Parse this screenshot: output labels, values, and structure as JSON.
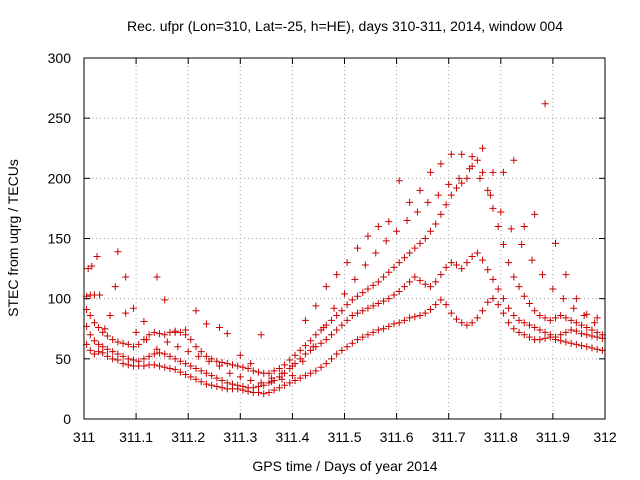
{
  "chart_data": {
    "type": "scatter",
    "title": "Rec. ufpr (Lon=310, Lat=-25, h=HE), days 310-311, 2014, window 004",
    "xlabel": "GPS time / Days of year 2014",
    "ylabel": "STEC from uqrg / TECUs",
    "xlim": [
      311,
      312
    ],
    "ylim": [
      0,
      300
    ],
    "xticks": [
      311,
      311.1,
      311.2,
      311.3,
      311.4,
      311.5,
      311.6,
      311.7,
      311.8,
      311.9,
      312
    ],
    "xtick_labels": [
      "311",
      "311.1",
      "311.2",
      "311.3",
      "311.4",
      "311.5",
      "311.6",
      "311.7",
      "311.8",
      "311.9",
      "312"
    ],
    "yticks": [
      0,
      50,
      100,
      150,
      200,
      250,
      300
    ],
    "ytick_labels": [
      "0",
      "50",
      "100",
      "150",
      "200",
      "250",
      "300"
    ],
    "grid": true,
    "marker": "+",
    "color": "#cc0000",
    "series": [
      {
        "name": "band1",
        "x": [
          311.005,
          311.012,
          311.02,
          311.028,
          311.036,
          311.045,
          311.055,
          311.065,
          311.075,
          311.085,
          311.095,
          311.105,
          311.115,
          311.125,
          311.135,
          311.145,
          311.155,
          311.165,
          311.175,
          311.185,
          311.195,
          311.205,
          311.215,
          311.225,
          311.235,
          311.245,
          311.255,
          311.265,
          311.275,
          311.285,
          311.295,
          311.305,
          311.315,
          311.325,
          311.335,
          311.345,
          311.355,
          311.365,
          311.375,
          311.385,
          311.395,
          311.405,
          311.415,
          311.425,
          311.435,
          311.445,
          311.455,
          311.465,
          311.475,
          311.485,
          311.495,
          311.505,
          311.515,
          311.525,
          311.535,
          311.545,
          311.555,
          311.565,
          311.575,
          311.585,
          311.595,
          311.605,
          311.615,
          311.625,
          311.635,
          311.645,
          311.655,
          311.665,
          311.675,
          311.685,
          311.695,
          311.705,
          311.715,
          311.725,
          311.735,
          311.745,
          311.755,
          311.765,
          311.775,
          311.785,
          311.795,
          311.805,
          311.815,
          311.825,
          311.835,
          311.845,
          311.855,
          311.865,
          311.875,
          311.885,
          311.895,
          311.905,
          311.915,
          311.925,
          311.935,
          311.945,
          311.955,
          311.965,
          311.975,
          311.985,
          311.995
        ],
        "y": [
          62,
          57,
          54,
          56,
          55,
          52,
          50,
          49,
          46,
          45,
          44,
          44,
          44,
          45,
          45,
          44,
          43,
          42,
          41,
          39,
          37,
          35,
          33,
          31,
          29,
          28,
          27,
          26,
          25,
          25,
          25,
          24,
          23,
          22,
          22,
          21,
          22,
          24,
          26,
          28,
          30,
          32,
          34,
          36,
          38,
          40,
          43,
          46,
          50,
          54,
          57,
          60,
          63,
          66,
          68,
          70,
          72,
          74,
          75,
          77,
          79,
          80,
          82,
          84,
          85,
          86,
          88,
          91,
          95,
          99,
          95,
          88,
          83,
          80,
          78,
          80,
          84,
          90,
          97,
          100,
          95,
          88,
          80,
          75,
          72,
          70,
          68,
          66,
          66,
          67,
          68,
          66,
          65,
          64,
          63,
          62,
          61,
          60,
          59,
          58,
          57
        ]
      },
      {
        "name": "band2",
        "x": [
          311.005,
          311.012,
          311.02,
          311.028,
          311.036,
          311.045,
          311.055,
          311.065,
          311.075,
          311.085,
          311.095,
          311.105,
          311.115,
          311.125,
          311.135,
          311.145,
          311.155,
          311.165,
          311.175,
          311.185,
          311.195,
          311.205,
          311.215,
          311.225,
          311.235,
          311.245,
          311.255,
          311.265,
          311.275,
          311.285,
          311.295,
          311.305,
          311.315,
          311.325,
          311.335,
          311.345,
          311.355,
          311.365,
          311.375,
          311.385,
          311.395,
          311.405,
          311.415,
          311.425,
          311.435,
          311.445,
          311.455,
          311.465,
          311.475,
          311.485,
          311.495,
          311.505,
          311.515,
          311.525,
          311.535,
          311.545,
          311.555,
          311.565,
          311.575,
          311.585,
          311.595,
          311.605,
          311.615,
          311.625,
          311.635,
          311.645,
          311.655,
          311.665,
          311.675,
          311.685,
          311.695,
          311.705,
          311.715,
          311.725,
          311.735,
          311.745,
          311.755,
          311.765,
          311.775,
          311.785,
          311.795,
          311.805,
          311.815,
          311.825,
          311.835,
          311.845,
          311.855,
          311.865,
          311.875,
          311.885,
          311.895,
          311.905,
          311.915,
          311.925,
          311.935,
          311.945,
          311.955,
          311.965,
          311.975,
          311.985,
          311.995
        ],
        "y": [
          77,
          70,
          65,
          62,
          60,
          58,
          56,
          54,
          52,
          50,
          49,
          48,
          50,
          52,
          54,
          55,
          54,
          52,
          50,
          48,
          46,
          44,
          42,
          40,
          38,
          36,
          34,
          32,
          30,
          29,
          28,
          27,
          26,
          26,
          27,
          28,
          30,
          32,
          35,
          38,
          42,
          46,
          50,
          54,
          57,
          60,
          63,
          66,
          70,
          74,
          78,
          82,
          86,
          88,
          90,
          92,
          94,
          96,
          98,
          100,
          103,
          106,
          110,
          114,
          118,
          115,
          112,
          110,
          114,
          120,
          126,
          130,
          128,
          125,
          130,
          135,
          138,
          132,
          124,
          116,
          108,
          100,
          92,
          86,
          82,
          80,
          78,
          76,
          74,
          72,
          70,
          68,
          70,
          72,
          74,
          73,
          71,
          70,
          69,
          68,
          67
        ]
      },
      {
        "name": "band3",
        "x": [
          311.005,
          311.012,
          311.02,
          311.028,
          311.036,
          311.045,
          311.055,
          311.065,
          311.075,
          311.085,
          311.095,
          311.105,
          311.115,
          311.125,
          311.135,
          311.145,
          311.155,
          311.165,
          311.175,
          311.185,
          311.195,
          311.205,
          311.215,
          311.225,
          311.235,
          311.245,
          311.255,
          311.265,
          311.275,
          311.285,
          311.295,
          311.305,
          311.315,
          311.325,
          311.335,
          311.345,
          311.355,
          311.365,
          311.375,
          311.385,
          311.395,
          311.405,
          311.415,
          311.425,
          311.435,
          311.445,
          311.455,
          311.465,
          311.475,
          311.485,
          311.495,
          311.505,
          311.515,
          311.525,
          311.535,
          311.545,
          311.555,
          311.565,
          311.575,
          311.585,
          311.595,
          311.605,
          311.615,
          311.625,
          311.635,
          311.645,
          311.655,
          311.665,
          311.675,
          311.685,
          311.695,
          311.705,
          311.715,
          311.725,
          311.735,
          311.745,
          311.755,
          311.765,
          311.775,
          311.785,
          311.795,
          311.805,
          311.815,
          311.825,
          311.835,
          311.845,
          311.855,
          311.865,
          311.875,
          311.885,
          311.895,
          311.905,
          311.915,
          311.925,
          311.935,
          311.945,
          311.955,
          311.965,
          311.975,
          311.985,
          311.995
        ],
        "y": [
          91,
          86,
          80,
          76,
          72,
          69,
          66,
          64,
          63,
          62,
          60,
          62,
          66,
          70,
          72,
          71,
          70,
          72,
          73,
          72,
          70,
          66,
          60,
          56,
          52,
          50,
          48,
          47,
          46,
          45,
          44,
          43,
          42,
          40,
          39,
          38,
          38,
          40,
          42,
          45,
          49,
          53,
          57,
          61,
          65,
          70,
          74,
          78,
          82,
          86,
          90,
          95,
          99,
          102,
          105,
          108,
          111,
          114,
          118,
          122,
          126,
          130,
          134,
          138,
          142,
          146,
          150,
          156,
          162,
          170,
          178,
          186,
          192,
          196,
          200,
          210,
          215,
          205,
          190,
          175,
          160,
          145,
          130,
          118,
          110,
          102,
          96,
          90,
          86,
          84,
          82,
          84,
          86,
          84,
          82,
          80,
          78,
          76,
          74,
          72,
          70
        ]
      },
      {
        "name": "band4",
        "x": [
          311.005,
          311.012,
          311.02,
          311.03,
          311.05,
          311.065,
          311.08,
          311.095,
          311.115,
          311.14,
          311.155,
          311.175,
          311.195,
          311.215,
          311.235,
          311.26,
          311.275,
          311.3,
          311.32,
          311.34,
          311.36,
          311.38,
          311.4,
          311.425,
          311.445,
          311.465,
          311.485,
          311.505,
          311.525,
          311.545,
          311.565,
          311.585,
          311.605,
          311.625,
          311.645,
          311.665,
          311.685,
          311.705,
          311.725,
          311.745,
          311.765,
          311.785,
          311.805,
          311.825,
          311.845,
          311.865,
          311.885,
          311.905,
          311.925,
          311.945,
          311.965,
          311.985
        ],
        "y": [
          102,
          103,
          103,
          103,
          86,
          139,
          118,
          92,
          81,
          118,
          99,
          72,
          74,
          90,
          79,
          76,
          71,
          53,
          46,
          70,
          34,
          38,
          44,
          82,
          94,
          110,
          120,
          130,
          142,
          152,
          160,
          164,
          198,
          180,
          190,
          205,
          212,
          220,
          220,
          218,
          225,
          205,
          205,
          215,
          160,
          170,
          262,
          146,
          120,
          100,
          87,
          84
        ]
      },
      {
        "name": "band5",
        "x": [
          311.008,
          311.015,
          311.025,
          311.04,
          311.06,
          311.08,
          311.1,
          311.12,
          311.14,
          311.16,
          311.18,
          311.2,
          311.22,
          311.24,
          311.26,
          311.28,
          311.3,
          311.32,
          311.34,
          311.36,
          311.38,
          311.4,
          311.42,
          311.44,
          311.46,
          311.48,
          311.5,
          311.52,
          311.54,
          311.56,
          311.58,
          311.6,
          311.62,
          311.64,
          311.66,
          311.68,
          311.7,
          311.72,
          311.74,
          311.76,
          311.78,
          311.8,
          311.82,
          311.84,
          311.86,
          311.88,
          311.9,
          311.92,
          311.94,
          311.96,
          311.98
        ],
        "y": [
          125,
          127,
          135,
          75,
          110,
          88,
          72,
          66,
          58,
          64,
          60,
          56,
          52,
          48,
          44,
          38,
          35,
          32,
          30,
          31,
          33,
          36,
          48,
          60,
          76,
          92,
          104,
          116,
          128,
          138,
          148,
          156,
          165,
          172,
          180,
          186,
          195,
          200,
          208,
          200,
          186,
          172,
          158,
          145,
          132,
          120,
          108,
          100,
          92,
          86,
          80
        ]
      }
    ]
  }
}
